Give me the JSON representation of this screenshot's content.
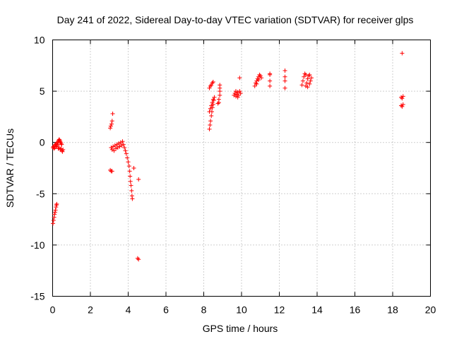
{
  "chart_data": {
    "type": "scatter",
    "title": "Day 241 of 2022, Sidereal Day-to-day VTEC variation (SDTVAR) for receiver glps",
    "xlabel": "GPS time / hours",
    "ylabel": "SDTVAR / TECUs",
    "xlim": [
      0,
      20
    ],
    "ylim": [
      -15,
      10
    ],
    "xticks": [
      "0",
      "2",
      "4",
      "6",
      "8",
      "10",
      "12",
      "14",
      "16",
      "18",
      "20"
    ],
    "yticks": [
      "10",
      "5",
      "0",
      "-5",
      "-10",
      "-15"
    ],
    "grid": true,
    "marker": "+",
    "color": "#ff0000",
    "series": [
      {
        "name": "SDTVAR",
        "points": [
          [
            0.02,
            -0.5
          ],
          [
            0.05,
            -0.4
          ],
          [
            0.08,
            -0.6
          ],
          [
            0.1,
            -0.3
          ],
          [
            0.12,
            -0.5
          ],
          [
            0.15,
            -0.2
          ],
          [
            0.18,
            -0.4
          ],
          [
            0.2,
            -0.1
          ],
          [
            0.22,
            -0.3
          ],
          [
            0.25,
            0.0
          ],
          [
            0.28,
            -0.2
          ],
          [
            0.3,
            0.1
          ],
          [
            0.32,
            0.2
          ],
          [
            0.35,
            0.3
          ],
          [
            0.38,
            0.2
          ],
          [
            0.4,
            0.1
          ],
          [
            0.42,
            0.0
          ],
          [
            0.45,
            -0.1
          ],
          [
            0.48,
            -0.2
          ],
          [
            0.3,
            -0.6
          ],
          [
            0.35,
            -0.5
          ],
          [
            0.4,
            -0.7
          ],
          [
            0.45,
            -0.6
          ],
          [
            0.5,
            -0.8
          ],
          [
            0.52,
            -0.9
          ],
          [
            0.55,
            -0.7
          ],
          [
            0.02,
            -7.9
          ],
          [
            0.05,
            -7.6
          ],
          [
            0.08,
            -7.3
          ],
          [
            0.1,
            -7.0
          ],
          [
            0.13,
            -6.8
          ],
          [
            0.15,
            -6.6
          ],
          [
            0.18,
            -6.3
          ],
          [
            0.2,
            -6.1
          ],
          [
            0.22,
            -6.0
          ],
          [
            3.05,
            1.4
          ],
          [
            3.08,
            1.6
          ],
          [
            3.12,
            1.8
          ],
          [
            3.15,
            2.1
          ],
          [
            3.18,
            2.8
          ],
          [
            3.05,
            -2.7
          ],
          [
            3.1,
            -2.8
          ],
          [
            3.15,
            -2.8
          ],
          [
            3.1,
            -0.5
          ],
          [
            3.15,
            -0.7
          ],
          [
            3.2,
            -0.4
          ],
          [
            3.25,
            -0.8
          ],
          [
            3.3,
            -0.3
          ],
          [
            3.35,
            -0.6
          ],
          [
            3.4,
            -0.2
          ],
          [
            3.45,
            -0.5
          ],
          [
            3.5,
            -0.1
          ],
          [
            3.55,
            -0.4
          ],
          [
            3.6,
            0.0
          ],
          [
            3.65,
            -0.3
          ],
          [
            3.7,
            0.1
          ],
          [
            3.75,
            -0.2
          ],
          [
            3.8,
            -0.5
          ],
          [
            3.85,
            -0.8
          ],
          [
            3.9,
            -1.1
          ],
          [
            3.95,
            -1.5
          ],
          [
            4.0,
            -1.9
          ],
          [
            4.05,
            -2.3
          ],
          [
            4.08,
            -2.8
          ],
          [
            4.1,
            -3.3
          ],
          [
            4.12,
            -3.8
          ],
          [
            4.15,
            -4.2
          ],
          [
            4.18,
            -4.7
          ],
          [
            4.2,
            -5.2
          ],
          [
            4.22,
            -5.5
          ],
          [
            4.3,
            -2.5
          ],
          [
            4.55,
            -3.6
          ],
          [
            4.5,
            -11.3
          ],
          [
            4.55,
            -11.4
          ],
          [
            8.3,
            1.3
          ],
          [
            8.33,
            1.7
          ],
          [
            8.36,
            2.1
          ],
          [
            8.4,
            2.6
          ],
          [
            8.43,
            3.0
          ],
          [
            8.46,
            3.4
          ],
          [
            8.5,
            3.7
          ],
          [
            8.53,
            4.1
          ],
          [
            8.56,
            4.4
          ],
          [
            8.3,
            3.0
          ],
          [
            8.35,
            3.3
          ],
          [
            8.4,
            3.6
          ],
          [
            8.45,
            3.9
          ],
          [
            8.5,
            4.2
          ],
          [
            8.3,
            5.3
          ],
          [
            8.35,
            5.5
          ],
          [
            8.4,
            5.6
          ],
          [
            8.45,
            5.8
          ],
          [
            8.5,
            5.9
          ],
          [
            8.75,
            3.8
          ],
          [
            8.8,
            4.2
          ],
          [
            8.85,
            4.6
          ],
          [
            8.85,
            5.0
          ],
          [
            8.85,
            5.3
          ],
          [
            8.85,
            5.6
          ],
          [
            8.8,
            3.9
          ],
          [
            9.6,
            4.6
          ],
          [
            9.65,
            4.8
          ],
          [
            9.7,
            5.0
          ],
          [
            9.75,
            4.7
          ],
          [
            9.8,
            4.9
          ],
          [
            9.85,
            4.6
          ],
          [
            9.9,
            5.0
          ],
          [
            9.95,
            4.8
          ],
          [
            9.7,
            4.5
          ],
          [
            9.8,
            4.4
          ],
          [
            9.9,
            6.3
          ],
          [
            10.7,
            5.5
          ],
          [
            10.75,
            5.8
          ],
          [
            10.8,
            6.0
          ],
          [
            10.85,
            6.2
          ],
          [
            10.9,
            6.4
          ],
          [
            10.95,
            6.6
          ],
          [
            11.0,
            6.5
          ],
          [
            11.05,
            6.3
          ],
          [
            10.8,
            5.7
          ],
          [
            10.9,
            6.1
          ],
          [
            11.5,
            5.5
          ],
          [
            11.5,
            6.0
          ],
          [
            11.5,
            6.6
          ],
          [
            11.5,
            6.7
          ],
          [
            12.3,
            5.3
          ],
          [
            12.3,
            6.0
          ],
          [
            12.3,
            6.4
          ],
          [
            12.3,
            7.0
          ],
          [
            13.2,
            5.6
          ],
          [
            13.25,
            6.0
          ],
          [
            13.3,
            6.4
          ],
          [
            13.35,
            6.7
          ],
          [
            13.4,
            5.5
          ],
          [
            13.45,
            5.8
          ],
          [
            13.5,
            6.2
          ],
          [
            13.55,
            6.5
          ],
          [
            13.6,
            5.7
          ],
          [
            13.65,
            6.0
          ],
          [
            13.7,
            6.3
          ],
          [
            13.4,
            6.6
          ],
          [
            13.5,
            5.4
          ],
          [
            13.6,
            6.6
          ],
          [
            18.5,
            8.7
          ],
          [
            18.45,
            3.6
          ],
          [
            18.5,
            3.5
          ],
          [
            18.55,
            3.7
          ],
          [
            18.45,
            4.4
          ],
          [
            18.5,
            4.3
          ],
          [
            18.55,
            4.5
          ]
        ]
      }
    ]
  }
}
